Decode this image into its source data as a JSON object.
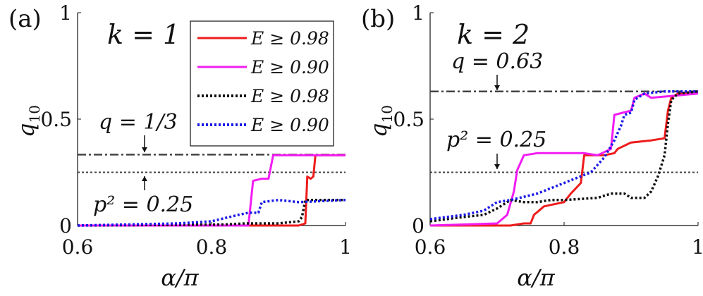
{
  "colors": {
    "red": "#ee1c1c",
    "magenta": "#f21cf2",
    "black": "#111111",
    "blue": "#1a1ae6",
    "refline": "#444444"
  },
  "legend": [
    {
      "label": "E ≥ 0.98",
      "color": "red",
      "style": "solid"
    },
    {
      "label": "E ≥ 0.90",
      "color": "magenta",
      "style": "solid"
    },
    {
      "label": "E ≥ 0.98",
      "color": "black",
      "style": "dotted"
    },
    {
      "label": "E ≥ 0.90",
      "color": "blue",
      "style": "dotted"
    }
  ],
  "chart_data": [
    {
      "type": "line",
      "panel_label": "(a)",
      "k_label": "k = 1",
      "xlabel": "α/π",
      "ylabel": "q10",
      "xlim": [
        0.6,
        1.0
      ],
      "ylim": [
        0,
        1
      ],
      "xticks": [
        "0.6",
        "0.8",
        "1"
      ],
      "yticks": [
        "0",
        "0.5",
        "1"
      ],
      "reference_lines": [
        {
          "y": 0.3333,
          "style": "dashdot",
          "annotation": "q = 1/3",
          "note": "arrow points down to line"
        },
        {
          "y": 0.25,
          "style": "dotted",
          "annotation": "p² = 0.25",
          "note": "arrow points up to line"
        }
      ],
      "series": [
        {
          "name": "E ≥ 0.98 (solid)",
          "color": "red",
          "style": "solid",
          "points": [
            [
              0.6,
              0
            ],
            [
              0.93,
              0
            ],
            [
              0.94,
              0.01
            ],
            [
              0.943,
              0.23
            ],
            [
              0.948,
              0.22
            ],
            [
              0.952,
              0.23
            ],
            [
              0.955,
              0.33
            ],
            [
              1.0,
              0.33
            ]
          ]
        },
        {
          "name": "E ≥ 0.90 (solid)",
          "color": "magenta",
          "style": "solid",
          "points": [
            [
              0.6,
              0
            ],
            [
              0.855,
              0
            ],
            [
              0.862,
              0.21
            ],
            [
              0.875,
              0.22
            ],
            [
              0.885,
              0.22
            ],
            [
              0.892,
              0.33
            ],
            [
              1.0,
              0.33
            ]
          ]
        },
        {
          "name": "E ≥ 0.98 (dotted)",
          "color": "black",
          "style": "dotted",
          "points": [
            [
              0.6,
              0
            ],
            [
              0.82,
              0.005
            ],
            [
              0.85,
              0.01
            ],
            [
              0.9,
              0.01
            ],
            [
              0.93,
              0.02
            ],
            [
              0.935,
              0.04
            ],
            [
              0.94,
              0.12
            ],
            [
              1.0,
              0.12
            ]
          ]
        },
        {
          "name": "E ≥ 0.90 (dotted)",
          "color": "blue",
          "style": "dotted",
          "points": [
            [
              0.6,
              0
            ],
            [
              0.75,
              0.01
            ],
            [
              0.8,
              0.02
            ],
            [
              0.84,
              0.05
            ],
            [
              0.855,
              0.06
            ],
            [
              0.87,
              0.06
            ],
            [
              0.875,
              0.11
            ],
            [
              0.9,
              0.12
            ],
            [
              0.93,
              0.11
            ],
            [
              1.0,
              0.12
            ]
          ]
        }
      ]
    },
    {
      "type": "line",
      "panel_label": "(b)",
      "k_label": "k = 2",
      "xlabel": "α/π",
      "ylabel": "q10",
      "xlim": [
        0.6,
        1.0
      ],
      "ylim": [
        0,
        1
      ],
      "xticks": [
        "0.6",
        "0.8",
        "1"
      ],
      "yticks": [
        "0",
        "0.5",
        "1"
      ],
      "reference_lines": [
        {
          "y": 0.63,
          "style": "dashdot",
          "annotation": "q = 0.63",
          "note": "arrow points down to line"
        },
        {
          "y": 0.25,
          "style": "dotted",
          "annotation": "p² = 0.25",
          "note": "arrow points down to line"
        }
      ],
      "series": [
        {
          "name": "E ≥ 0.98 (solid)",
          "color": "red",
          "style": "solid",
          "points": [
            [
              0.6,
              0
            ],
            [
              0.72,
              0
            ],
            [
              0.74,
              0.01
            ],
            [
              0.75,
              0.01
            ],
            [
              0.755,
              0.05
            ],
            [
              0.77,
              0.09
            ],
            [
              0.8,
              0.11
            ],
            [
              0.81,
              0.15
            ],
            [
              0.825,
              0.2
            ],
            [
              0.83,
              0.33
            ],
            [
              0.86,
              0.33
            ],
            [
              0.875,
              0.34
            ],
            [
              0.88,
              0.36
            ],
            [
              0.9,
              0.39
            ],
            [
              0.93,
              0.4
            ],
            [
              0.95,
              0.41
            ],
            [
              0.955,
              0.54
            ],
            [
              0.96,
              0.6
            ],
            [
              0.97,
              0.62
            ],
            [
              1.0,
              0.63
            ]
          ]
        },
        {
          "name": "E ≥ 0.90 (solid)",
          "color": "magenta",
          "style": "solid",
          "points": [
            [
              0.6,
              0
            ],
            [
              0.7,
              0.01
            ],
            [
              0.715,
              0.05
            ],
            [
              0.725,
              0.16
            ],
            [
              0.73,
              0.26
            ],
            [
              0.74,
              0.33
            ],
            [
              0.76,
              0.34
            ],
            [
              0.83,
              0.34
            ],
            [
              0.85,
              0.33
            ],
            [
              0.87,
              0.36
            ],
            [
              0.875,
              0.52
            ],
            [
              0.9,
              0.54
            ],
            [
              0.905,
              0.6
            ],
            [
              0.92,
              0.62
            ],
            [
              0.93,
              0.6
            ],
            [
              1.0,
              0.62
            ]
          ]
        },
        {
          "name": "E ≥ 0.98 (dotted)",
          "color": "black",
          "style": "dotted",
          "points": [
            [
              0.6,
              0.02
            ],
            [
              0.65,
              0.04
            ],
            [
              0.68,
              0.05
            ],
            [
              0.7,
              0.08
            ],
            [
              0.72,
              0.12
            ],
            [
              0.74,
              0.11
            ],
            [
              0.76,
              0.11
            ],
            [
              0.78,
              0.12
            ],
            [
              0.8,
              0.12
            ],
            [
              0.85,
              0.13
            ],
            [
              0.87,
              0.15
            ],
            [
              0.89,
              0.15
            ],
            [
              0.9,
              0.13
            ],
            [
              0.92,
              0.13
            ],
            [
              0.93,
              0.16
            ],
            [
              0.94,
              0.23
            ],
            [
              0.945,
              0.28
            ],
            [
              0.95,
              0.33
            ],
            [
              0.955,
              0.48
            ],
            [
              0.96,
              0.59
            ],
            [
              0.97,
              0.62
            ],
            [
              1.0,
              0.63
            ]
          ]
        },
        {
          "name": "E ≥ 0.90 (dotted)",
          "color": "blue",
          "style": "dotted",
          "points": [
            [
              0.6,
              0.03
            ],
            [
              0.65,
              0.05
            ],
            [
              0.68,
              0.07
            ],
            [
              0.7,
              0.11
            ],
            [
              0.72,
              0.12
            ],
            [
              0.76,
              0.15
            ],
            [
              0.8,
              0.2
            ],
            [
              0.84,
              0.25
            ],
            [
              0.86,
              0.32
            ],
            [
              0.875,
              0.4
            ],
            [
              0.885,
              0.47
            ],
            [
              0.89,
              0.52
            ],
            [
              0.9,
              0.53
            ],
            [
              0.905,
              0.59
            ],
            [
              0.92,
              0.62
            ],
            [
              0.95,
              0.63
            ],
            [
              1.0,
              0.63
            ]
          ]
        }
      ]
    }
  ]
}
